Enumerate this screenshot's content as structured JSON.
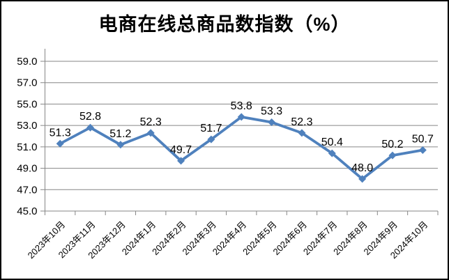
{
  "window": {
    "background_color": "#ffffff",
    "border_color": "#000000"
  },
  "chart_data": {
    "type": "line",
    "title": "电商在线总商品数指数（%）",
    "categories": [
      "2023年10月",
      "2023年11月",
      "2023年12月",
      "2024年1月",
      "2024年2月",
      "2024年3月",
      "2024年4月",
      "2024年5月",
      "2024年6月",
      "2024年7月",
      "2024年8月",
      "2024年9月",
      "2024年10月"
    ],
    "values": [
      51.3,
      52.8,
      51.2,
      52.3,
      49.7,
      51.7,
      53.8,
      53.3,
      52.3,
      50.4,
      48.0,
      50.2,
      50.7
    ],
    "data_labels": [
      "51.3",
      "52.8",
      "51.2",
      "52.3",
      "49.7",
      "51.7",
      "53.8",
      "53.3",
      "52.3",
      "50.4",
      "48.0",
      "50.2",
      "50.7"
    ],
    "xlabel": "",
    "ylabel": "",
    "ylim": [
      45.0,
      59.0
    ],
    "yticks": [
      "45.0",
      "47.0",
      "49.0",
      "51.0",
      "53.0",
      "55.0",
      "57.0",
      "59.0"
    ],
    "grid": "horizontal",
    "legend": "none",
    "marker": "diamond",
    "line_color": "#4F81BD",
    "grid_color": "#868686",
    "axis_color": "#868686",
    "text_color": "#000000"
  }
}
